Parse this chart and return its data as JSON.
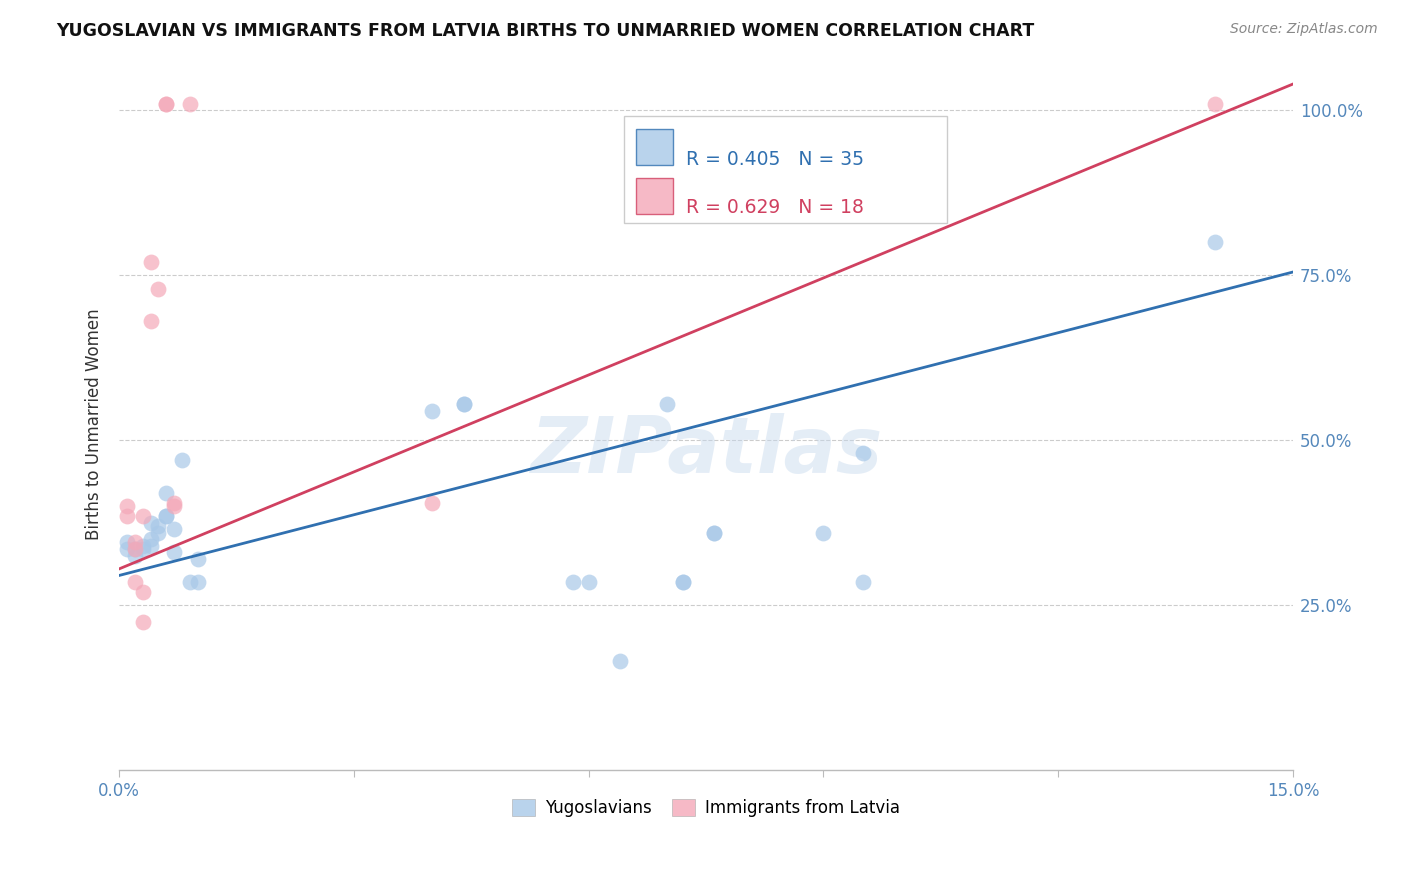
{
  "title": "YUGOSLAVIAN VS IMMIGRANTS FROM LATVIA BIRTHS TO UNMARRIED WOMEN CORRELATION CHART",
  "source": "Source: ZipAtlas.com",
  "ylabel": "Births to Unmarried Women",
  "xlim": [
    0.0,
    0.15
  ],
  "ylim": [
    0.0,
    1.05
  ],
  "yticks": [
    0.25,
    0.5,
    0.75,
    1.0
  ],
  "ytick_labels": [
    "25.0%",
    "50.0%",
    "75.0%",
    "100.0%"
  ],
  "xticks": [
    0.0,
    0.03,
    0.06,
    0.09,
    0.12,
    0.15
  ],
  "xtick_labels": [
    "0.0%",
    "",
    "",
    "",
    "",
    "15.0%"
  ],
  "blue_R": 0.405,
  "blue_N": 35,
  "pink_R": 0.629,
  "pink_N": 18,
  "blue_color": "#a8c8e8",
  "pink_color": "#f4a8b8",
  "blue_line_color": "#3070b0",
  "pink_line_color": "#d04060",
  "watermark": "ZIPatlas",
  "blue_scatter_x": [
    0.001,
    0.001,
    0.002,
    0.002,
    0.003,
    0.003,
    0.004,
    0.004,
    0.004,
    0.005,
    0.005,
    0.006,
    0.006,
    0.006,
    0.007,
    0.007,
    0.008,
    0.009,
    0.01,
    0.01,
    0.04,
    0.044,
    0.044,
    0.058,
    0.06,
    0.064,
    0.07,
    0.072,
    0.072,
    0.076,
    0.076,
    0.09,
    0.095,
    0.095,
    0.14
  ],
  "blue_scatter_y": [
    0.335,
    0.345,
    0.335,
    0.325,
    0.34,
    0.335,
    0.375,
    0.35,
    0.34,
    0.37,
    0.36,
    0.385,
    0.385,
    0.42,
    0.33,
    0.365,
    0.47,
    0.285,
    0.32,
    0.285,
    0.545,
    0.555,
    0.555,
    0.285,
    0.285,
    0.165,
    0.555,
    0.285,
    0.285,
    0.36,
    0.36,
    0.36,
    0.48,
    0.285,
    0.8
  ],
  "pink_scatter_x": [
    0.001,
    0.001,
    0.002,
    0.002,
    0.002,
    0.003,
    0.003,
    0.003,
    0.004,
    0.004,
    0.005,
    0.006,
    0.006,
    0.007,
    0.007,
    0.009,
    0.04,
    0.14
  ],
  "pink_scatter_y": [
    0.385,
    0.4,
    0.345,
    0.285,
    0.335,
    0.385,
    0.27,
    0.225,
    0.68,
    0.77,
    0.73,
    1.01,
    1.01,
    0.405,
    0.4,
    1.01,
    0.405,
    1.01
  ],
  "blue_line_x": [
    0.0,
    0.15
  ],
  "blue_line_y": [
    0.295,
    0.755
  ],
  "pink_line_x": [
    0.0,
    0.15
  ],
  "pink_line_y": [
    0.305,
    1.04
  ]
}
